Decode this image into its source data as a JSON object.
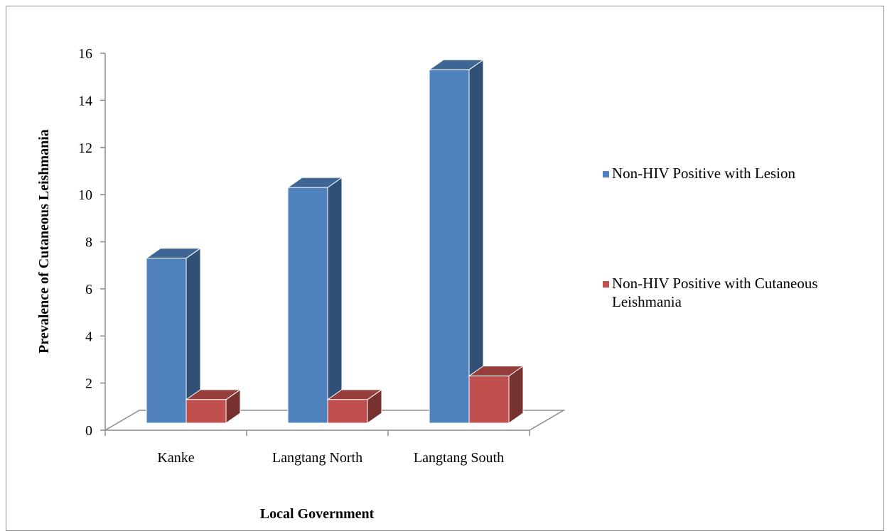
{
  "chart_data": {
    "type": "bar",
    "title": "",
    "xlabel": "Local Government",
    "ylabel": "Prevalence of Cutaneous Leishmania",
    "ylim": [
      0,
      16
    ],
    "yticks": [
      0,
      2,
      4,
      6,
      8,
      10,
      12,
      14,
      16
    ],
    "categories": [
      "Kanke",
      "Langtang North",
      "Langtang South"
    ],
    "series": [
      {
        "name": "Non-HIV Positive with Lesion",
        "values": [
          7,
          10,
          15
        ],
        "color": "#4F81BD"
      },
      {
        "name": "Non-HIV Positive with Cutaneous Leishmania",
        "values": [
          1,
          1,
          2
        ],
        "color": "#C0504D"
      }
    ],
    "legend_position": "right",
    "grid": false,
    "style": "3d-column"
  }
}
